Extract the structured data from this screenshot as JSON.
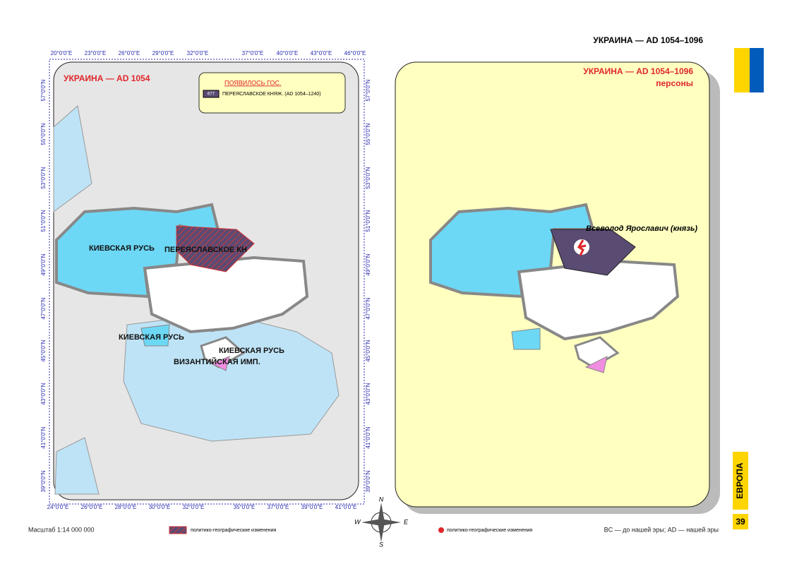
{
  "header": {
    "title": "УКРАИНА — AD 1054–1096"
  },
  "left_map": {
    "title": "УКРАИНА — AD 1054",
    "legend": {
      "heading": "ПОЯВИЛОСЬ ГОС.",
      "code": "677",
      "label": "ПЕРЕЯСЛАВСКОЕ КНЯЖ. (AD 1054–1240)"
    },
    "labels": [
      "КИЕВСКАЯ РУСЬ",
      "ПЕРЕЯСЛАВСКОЕ КН",
      "КИЕВСКАЯ РУСЬ",
      "КИЕВСКАЯ РУСЬ",
      "ВИЗАНТИЙСКАЯ ИМП."
    ],
    "top_lon": [
      "20°0'0\"E",
      "23°0'0\"E",
      "26°0'0\"E",
      "29°0'0\"E",
      "32°0'0\"E",
      "37°0'0\"E",
      "40°0'0\"E",
      "43°0'0\"E",
      "46°0'0\"E"
    ],
    "bottom_lon": [
      "24°0'0\"E",
      "26°0'0\"E",
      "28°0'0\"E",
      "30°0'0\"E",
      "32°0'0\"E",
      "35°0'0\"E",
      "37°0'0\"E",
      "39°0'0\"E",
      "41°0'0\"E"
    ],
    "lat": [
      "57°0'0\"N",
      "55°0'0\"N",
      "53°0'0\"N",
      "51°0'0\"N",
      "49°0'0\"N",
      "47°0'0\"N",
      "45°0'0\"N",
      "43°0'0\"N",
      "41°0'0\"N",
      "39°0'0\"N"
    ]
  },
  "right_map": {
    "title": "УКРАИНА — AD 1054–1096",
    "subtitle": "персоны",
    "person": "Всеволод Ярославич (князь)"
  },
  "compass": {
    "n": "N",
    "e": "E",
    "s": "S",
    "w": "W"
  },
  "footer": {
    "scale": "Масштаб 1:14 000 000",
    "legend_left": "политико-географические изменения",
    "legend_right": "политико-географические изменения",
    "era_note": "BC — до нашей эры; AD — нашей эры",
    "page": "39"
  },
  "side_tab": "ЕВРОПА"
}
